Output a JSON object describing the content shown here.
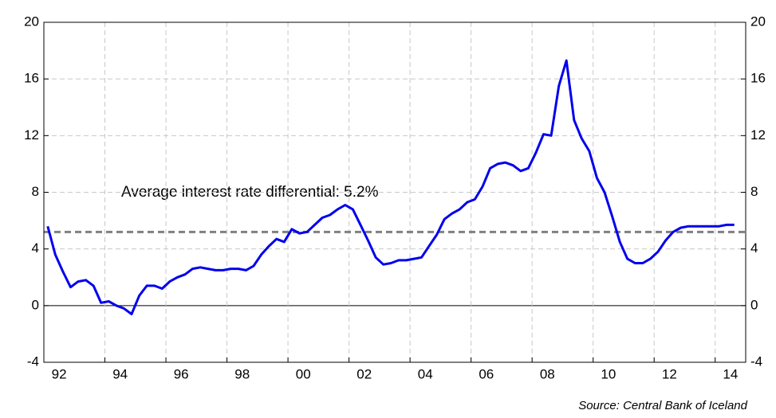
{
  "chart_data": {
    "type": "line",
    "annotation": "Average interest rate differential: 5.2%",
    "average": 5.2,
    "source": "Source: Central Bank of Iceland",
    "x": [
      1992.125,
      1992.375,
      1992.625,
      1992.875,
      1993.125,
      1993.375,
      1993.625,
      1993.875,
      1994.125,
      1994.375,
      1994.625,
      1994.875,
      1995.125,
      1995.375,
      1995.625,
      1995.875,
      1996.125,
      1996.375,
      1996.625,
      1996.875,
      1997.125,
      1997.375,
      1997.625,
      1997.875,
      1998.125,
      1998.375,
      1998.625,
      1998.875,
      1999.125,
      1999.375,
      1999.625,
      1999.875,
      2000.125,
      2000.375,
      2000.625,
      2000.875,
      2001.125,
      2001.375,
      2001.625,
      2001.875,
      2002.125,
      2002.375,
      2002.625,
      2002.875,
      2003.125,
      2003.375,
      2003.625,
      2003.875,
      2004.125,
      2004.375,
      2004.625,
      2004.875,
      2005.125,
      2005.375,
      2005.625,
      2005.875,
      2006.125,
      2006.375,
      2006.625,
      2006.875,
      2007.125,
      2007.375,
      2007.625,
      2007.875,
      2008.125,
      2008.375,
      2008.625,
      2008.875,
      2009.125,
      2009.375,
      2009.625,
      2009.875,
      2010.125,
      2010.375,
      2010.625,
      2010.875,
      2011.125,
      2011.375,
      2011.625,
      2011.875,
      2012.125,
      2012.375,
      2012.625,
      2012.875,
      2013.125,
      2013.375,
      2013.625,
      2013.875,
      2014.125,
      2014.375,
      2014.625
    ],
    "series": [
      {
        "name": "Interest rate differential",
        "color": "#0000ee",
        "values": [
          5.6,
          3.6,
          2.4,
          1.3,
          1.7,
          1.8,
          1.4,
          0.2,
          0.3,
          0.0,
          -0.2,
          -0.6,
          0.7,
          1.4,
          1.4,
          1.2,
          1.7,
          2.0,
          2.2,
          2.6,
          2.7,
          2.6,
          2.5,
          2.5,
          2.6,
          2.6,
          2.5,
          2.8,
          3.6,
          4.2,
          4.7,
          4.5,
          5.4,
          5.1,
          5.2,
          5.7,
          6.2,
          6.4,
          6.8,
          7.1,
          6.8,
          5.7,
          4.6,
          3.4,
          2.9,
          3.0,
          3.2,
          3.2,
          3.3,
          3.4,
          4.2,
          5.0,
          6.1,
          6.5,
          6.8,
          7.3,
          7.5,
          8.4,
          9.7,
          10.0,
          10.1,
          9.9,
          9.5,
          9.7,
          10.8,
          12.1,
          12.0,
          15.5,
          17.3,
          13.1,
          11.8,
          10.9,
          9.0,
          8.0,
          6.3,
          4.5,
          3.3,
          3.0,
          3.0,
          3.3,
          3.8,
          4.6,
          5.2,
          5.5,
          5.6,
          5.6,
          5.6,
          5.6,
          5.6,
          5.7,
          5.7
        ]
      }
    ],
    "xlim": [
      1992,
      2015
    ],
    "xticks": [
      {
        "value": 1992,
        "label": "92"
      },
      {
        "value": 1994,
        "label": "94"
      },
      {
        "value": 1996,
        "label": "96"
      },
      {
        "value": 1998,
        "label": "98"
      },
      {
        "value": 2000,
        "label": "00"
      },
      {
        "value": 2002,
        "label": "02"
      },
      {
        "value": 2004,
        "label": "04"
      },
      {
        "value": 2006,
        "label": "06"
      },
      {
        "value": 2008,
        "label": "08"
      },
      {
        "value": 2010,
        "label": "10"
      },
      {
        "value": 2012,
        "label": "12"
      },
      {
        "value": 2014,
        "label": "14"
      }
    ],
    "ylim": [
      -4,
      20
    ],
    "yticks": [
      -4,
      0,
      4,
      8,
      12,
      16,
      20
    ],
    "y2lim": [
      -4,
      20
    ],
    "y2ticks": [
      -4,
      0,
      4,
      8,
      12,
      16,
      20
    ],
    "grid": true
  }
}
